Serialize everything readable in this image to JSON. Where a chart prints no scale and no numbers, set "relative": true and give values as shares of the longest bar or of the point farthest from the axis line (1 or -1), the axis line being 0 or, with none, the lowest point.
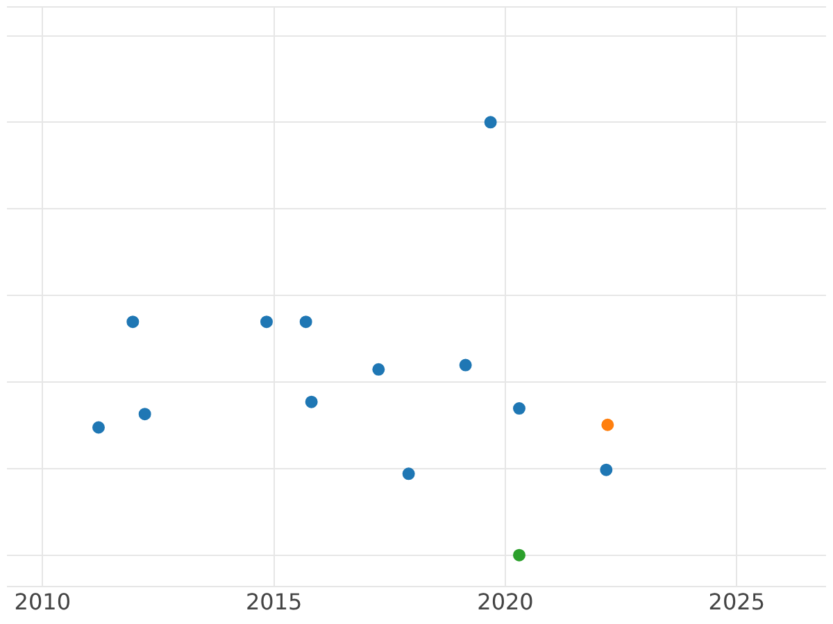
{
  "chart_data": {
    "type": "scatter",
    "relative": true,
    "grid": true,
    "marker": "circle",
    "xlim": [
      2009.23,
      2026.93
    ],
    "xticks": [
      2010,
      2015,
      2020,
      2025
    ],
    "series": [
      {
        "color": "#1f77b4",
        "x": [
          2011.21,
          2011.95,
          2012.21,
          2014.84,
          2015.69,
          2015.81,
          2017.26,
          2017.91,
          2019.14,
          2019.68,
          2020.3,
          2022.18
        ],
        "values": [
          0.295,
          0.539,
          0.326,
          0.539,
          0.539,
          0.354,
          0.429,
          0.188,
          0.439,
          1,
          0.339,
          0.197
        ]
      },
      {
        "color": "#ff7f0e",
        "x": [
          2022.21
        ],
        "values": [
          0.301
        ]
      },
      {
        "color": "#2ca02c",
        "x": [
          2020.3
        ],
        "values": [
          0
        ]
      }
    ]
  }
}
